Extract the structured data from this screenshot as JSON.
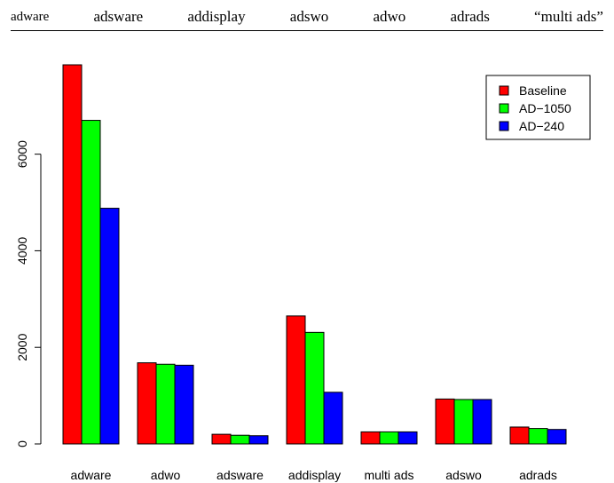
{
  "header_row": [
    "adware",
    "adsware",
    "addisplay",
    "adswo",
    "adwo",
    "adrads",
    "“multi ads”"
  ],
  "chart_data": {
    "type": "bar",
    "categories": [
      "adware",
      "adwo",
      "adsware",
      "addisplay",
      "multi ads",
      "adswo",
      "adrads"
    ],
    "series": [
      {
        "name": "Baseline",
        "color": "#ff0000",
        "values": [
          7850,
          1680,
          200,
          2650,
          250,
          930,
          350
        ]
      },
      {
        "name": "AD−1050",
        "color": "#00ff00",
        "values": [
          6700,
          1650,
          180,
          2310,
          250,
          920,
          320
        ]
      },
      {
        "name": "AD−240",
        "color": "#0000ff",
        "values": [
          4880,
          1630,
          170,
          1070,
          250,
          920,
          300
        ]
      }
    ],
    "ylim": [
      0,
      7850
    ],
    "yticks": [
      0,
      2000,
      4000,
      6000
    ],
    "ytick_labels": [
      "0",
      "2000",
      "4000",
      "6000"
    ],
    "legend_position": "top-right",
    "grid": false
  }
}
